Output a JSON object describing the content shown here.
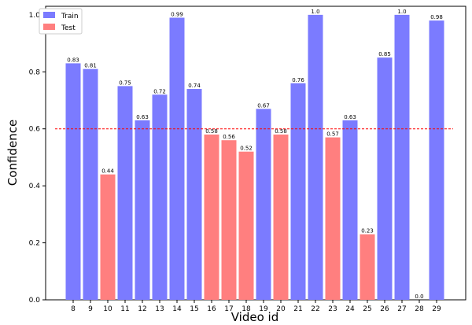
{
  "chart_data": {
    "type": "bar",
    "title": "",
    "xlabel": "Video id",
    "ylabel": "Confidence",
    "ylim": [
      0,
      1.03
    ],
    "yticks": [
      "0.0",
      "0.2",
      "0.4",
      "0.6",
      "0.8",
      "1.0"
    ],
    "ytick_values": [
      0,
      0.2,
      0.4,
      0.6,
      0.8,
      1.0
    ],
    "grid": false,
    "legend_position": "top-left",
    "categories": [
      "8",
      "9",
      "10",
      "11",
      "12",
      "13",
      "14",
      "15",
      "16",
      "17",
      "18",
      "19",
      "20",
      "21",
      "22",
      "23",
      "24",
      "25",
      "26",
      "27",
      "28",
      "29"
    ],
    "values": [
      0.83,
      0.81,
      0.44,
      0.75,
      0.63,
      0.72,
      0.99,
      0.74,
      0.58,
      0.56,
      0.52,
      0.67,
      0.58,
      0.76,
      1.0,
      0.57,
      0.63,
      0.23,
      0.85,
      1.0,
      0.0,
      0.98
    ],
    "value_labels": [
      "0.83",
      "0.81",
      "0.44",
      "0.75",
      "0.63",
      "0.72",
      "0.99",
      "0.74",
      "0.58",
      "0.56",
      "0.52",
      "0.67",
      "0.58",
      "0.76",
      "1.0",
      "0.57",
      "0.63",
      "0.23",
      "0.85",
      "1.0",
      "0.0",
      "0.98"
    ],
    "split": [
      "Train",
      "Train",
      "Test",
      "Train",
      "Train",
      "Train",
      "Train",
      "Train",
      "Test",
      "Test",
      "Test",
      "Train",
      "Test",
      "Train",
      "Train",
      "Test",
      "Train",
      "Test",
      "Train",
      "Train",
      "Train",
      "Train"
    ],
    "legend": [
      {
        "name": "Train",
        "color": "#7b7bff"
      },
      {
        "name": "Test",
        "color": "#ff7f7f"
      }
    ],
    "threshold": {
      "value": 0.6,
      "color": "#ff0000",
      "style": "dashed"
    }
  }
}
